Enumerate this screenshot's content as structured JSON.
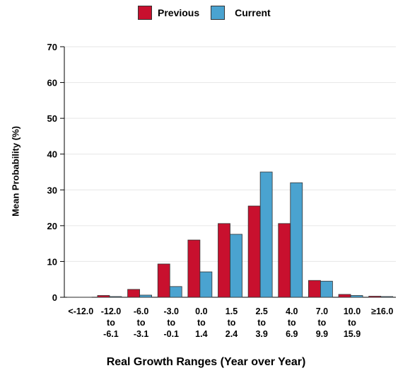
{
  "chart_data": {
    "type": "bar",
    "title": "",
    "xlabel": "Real Growth Ranges (Year over Year)",
    "ylabel": "Mean Probability (%)",
    "ylim": [
      0,
      70
    ],
    "yticks": [
      0,
      10,
      20,
      30,
      40,
      50,
      60,
      70
    ],
    "grid": true,
    "legend": "top-center",
    "categories": [
      [
        "<-12.0"
      ],
      [
        "-12.0",
        "to",
        "-6.1"
      ],
      [
        "-6.0",
        "to",
        "-3.1"
      ],
      [
        "-3.0",
        "to",
        "-0.1"
      ],
      [
        "0.0",
        "to",
        "1.4"
      ],
      [
        "1.5",
        "to",
        "2.4"
      ],
      [
        "2.5",
        "to",
        "3.9"
      ],
      [
        "4.0",
        "to",
        "6.9"
      ],
      [
        "7.0",
        "to",
        "9.9"
      ],
      [
        "10.0",
        "to",
        "15.9"
      ],
      [
        "≥16.0"
      ]
    ],
    "series": [
      {
        "name": "Previous",
        "color": "#c8102e",
        "values": [
          0,
          0.5,
          2.2,
          9.3,
          16.0,
          20.6,
          25.5,
          20.6,
          4.7,
          0.8,
          0.3
        ]
      },
      {
        "name": "Current",
        "color": "#4aa3d0",
        "values": [
          0,
          0.2,
          0.6,
          3.0,
          7.1,
          17.6,
          35.0,
          32.0,
          4.5,
          0.5,
          0.2
        ]
      }
    ]
  }
}
